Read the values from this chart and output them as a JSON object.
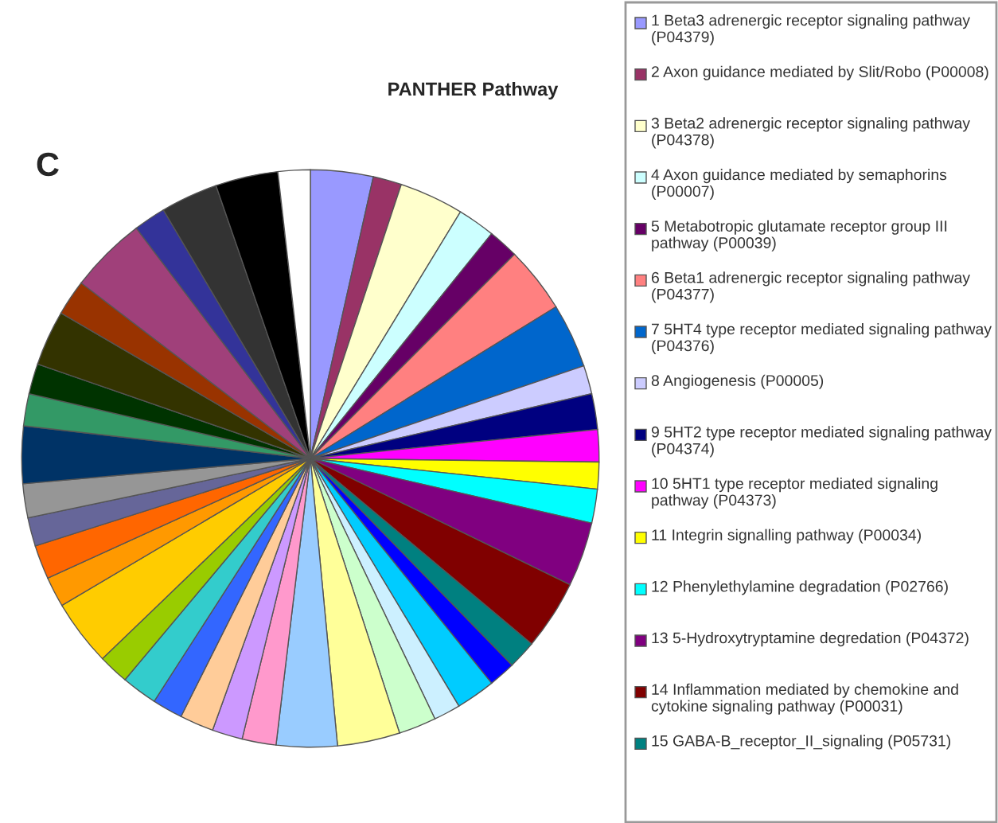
{
  "chart_data": {
    "type": "pie",
    "title": "PANTHER Pathway",
    "annotations": [
      "C"
    ],
    "legend": "right",
    "categories": [
      "1 Beta3 adrenergic receptor signaling pathway (P04379)",
      "2 Axon guidance mediated by Slit/Robo (P00008)",
      "3 Beta2 adrenergic receptor signaling pathway (P04378)",
      "4 Axon guidance mediated by semaphorins (P00007)",
      "5 Metabotropic glutamate receptor group III pathway (P00039)",
      "6 Beta1 adrenergic receptor signaling pathway (P04377)",
      "7 5HT4 type receptor mediated signaling pathway (P04376)",
      "8 Angiogenesis (P00005)",
      "9 5HT2 type receptor mediated signaling pathway (P04374)",
      "10 5HT1 type receptor mediated signaling pathway (P04373)",
      "11 Integrin signalling pathway (P00034)",
      "12 Phenylethylamine degradation (P02766)",
      "13 5-Hydroxytryptamine degredation (P04372)",
      "14 Inflammation mediated by chemokine and cytokine signaling pathway (P00031)",
      "15 GABA-B_receptor_II_signaling (P05731)",
      null,
      null,
      null,
      null,
      null,
      null,
      null,
      null,
      null,
      null,
      null,
      null,
      null,
      null,
      null,
      null,
      null,
      null,
      null,
      null,
      null,
      null,
      null,
      null,
      null,
      null,
      null
    ],
    "values": [
      3.5,
      1.6,
      3.6,
      2.1,
      1.7,
      3.7,
      3.6,
      1.6,
      2.0,
      1.8,
      1.5,
      1.9,
      3.6,
      3.9,
      1.6,
      1.5,
      2.2,
      1.5,
      2.1,
      3.5,
      3.4,
      1.9,
      1.7,
      1.9,
      1.7,
      2.0,
      1.7,
      3.7,
      1.7,
      1.9,
      1.6,
      1.9,
      3.2,
      1.8,
      1.7,
      3.1,
      2.0,
      4.3,
      1.8,
      3.2,
      3.5,
      1.8
    ],
    "colors": [
      "#9999ff",
      "#993366",
      "#ffffcc",
      "#ccffff",
      "#660066",
      "#ff8080",
      "#0066cc",
      "#ccccff",
      "#000080",
      "#ff00ff",
      "#ffff00",
      "#00ffff",
      "#800080",
      "#800000",
      "#008080",
      "#0000ff",
      "#00ccff",
      "#ccf0ff",
      "#ccffcc",
      "#ffff99",
      "#99ccff",
      "#ff99cc",
      "#cc99ff",
      "#ffcc99",
      "#3366ff",
      "#33cccc",
      "#99cc00",
      "#ffcc00",
      "#ff9900",
      "#ff6600",
      "#666699",
      "#969696",
      "#003366",
      "#339966",
      "#003300",
      "#333300",
      "#993300",
      "#a0407a",
      "#333399",
      "#333333",
      "#000000",
      "#ffffff"
    ]
  }
}
